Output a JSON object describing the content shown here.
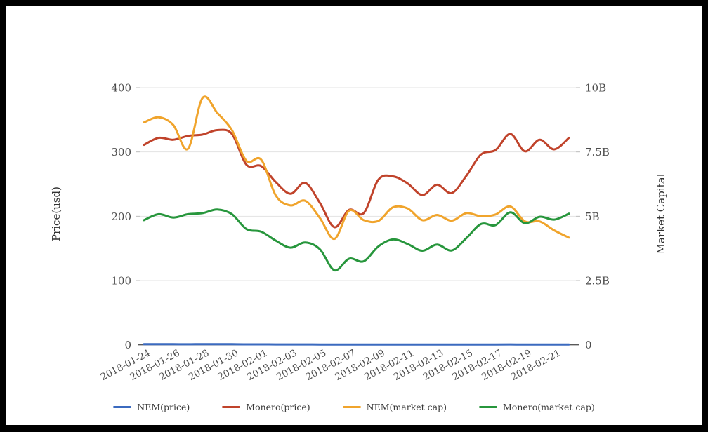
{
  "chart_data": {
    "type": "line",
    "smooth": true,
    "grid": "horizontal",
    "legend_position": "bottom",
    "x": [
      "2018-01-24",
      "2018-01-25",
      "2018-01-26",
      "2018-01-27",
      "2018-01-28",
      "2018-01-29",
      "2018-01-30",
      "2018-01-31",
      "2018-02-01",
      "2018-02-02",
      "2018-02-03",
      "2018-02-04",
      "2018-02-05",
      "2018-02-06",
      "2018-02-07",
      "2018-02-08",
      "2018-02-09",
      "2018-02-10",
      "2018-02-11",
      "2018-02-12",
      "2018-02-13",
      "2018-02-14",
      "2018-02-15",
      "2018-02-16",
      "2018-02-17",
      "2018-02-18",
      "2018-02-19",
      "2018-02-20",
      "2018-02-21",
      "2018-02-22"
    ],
    "x_tick_every": 2,
    "y_left": {
      "label": "Price(usd)",
      "min": 0,
      "max": 400,
      "ticks": [
        "0",
        "100",
        "200",
        "300",
        "400"
      ]
    },
    "y_right": {
      "label": "Market Capital",
      "min": 0,
      "max": 10,
      "unit": "B",
      "ticks": [
        "0",
        "2.5B",
        "5B",
        "7.5B",
        "10B"
      ]
    },
    "series": [
      {
        "name": "NEM(price)",
        "axis": "left",
        "color": "#3b6abf",
        "values": [
          0.96,
          0.98,
          0.95,
          0.85,
          1.07,
          1.0,
          0.93,
          0.79,
          0.8,
          0.64,
          0.6,
          0.62,
          0.55,
          0.46,
          0.58,
          0.54,
          0.54,
          0.59,
          0.59,
          0.54,
          0.56,
          0.54,
          0.57,
          0.56,
          0.56,
          0.6,
          0.53,
          0.53,
          0.49,
          0.46
        ]
      },
      {
        "name": "Monero(price)",
        "axis": "left",
        "color": "#c0432b",
        "values": [
          311,
          322,
          319,
          325,
          327,
          334,
          328,
          280,
          278,
          253,
          235,
          252,
          221,
          183,
          210,
          205,
          257,
          262,
          251,
          233,
          249,
          236,
          263,
          296,
          303,
          328,
          301,
          319,
          304,
          322
        ]
      },
      {
        "name": "NEM(market cap)",
        "axis": "right",
        "color": "#f0a42c",
        "values": [
          8.65,
          8.85,
          8.55,
          7.62,
          9.6,
          9.02,
          8.35,
          7.15,
          7.2,
          5.8,
          5.42,
          5.6,
          4.94,
          4.12,
          5.22,
          4.85,
          4.82,
          5.35,
          5.3,
          4.85,
          5.05,
          4.83,
          5.12,
          5.0,
          5.07,
          5.38,
          4.8,
          4.8,
          4.45,
          4.17
        ]
      },
      {
        "name": "Monero(market cap)",
        "axis": "right",
        "color": "#27963c",
        "values": [
          4.85,
          5.08,
          4.95,
          5.08,
          5.12,
          5.26,
          5.08,
          4.5,
          4.4,
          4.05,
          3.78,
          3.98,
          3.72,
          2.9,
          3.35,
          3.25,
          3.83,
          4.1,
          3.92,
          3.66,
          3.9,
          3.67,
          4.15,
          4.7,
          4.66,
          5.15,
          4.73,
          4.98,
          4.87,
          5.1
        ]
      }
    ],
    "style": {
      "gridline_color": "#e3e3e3",
      "baseline_color": "#595959",
      "tick_color": "#bbbbbb",
      "text_color": "#4c4c4c"
    }
  }
}
